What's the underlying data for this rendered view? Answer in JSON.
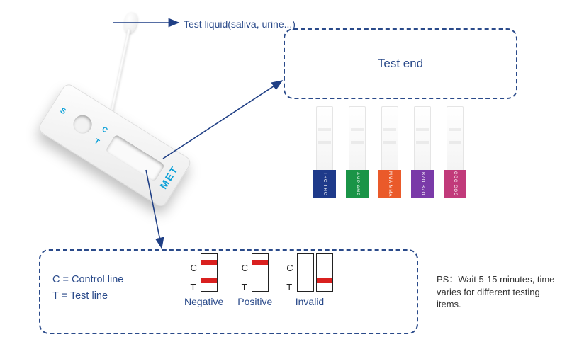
{
  "labels": {
    "testLiquid": "Test liquid(saliva, urine...)",
    "testEnd": "Test end",
    "controlLine": "C = Control line",
    "testLine": "T = Test line",
    "psNote": "PS：Wait 5-15 minutes, time varies for different testing items."
  },
  "device": {
    "name": "MET",
    "marks": {
      "s": "S",
      "c": "C",
      "t": "T"
    }
  },
  "results": [
    {
      "label": "Negative",
      "strips": [
        {
          "showC": true,
          "showT": true
        }
      ],
      "bandColor": "#d9201f"
    },
    {
      "label": "Positive",
      "strips": [
        {
          "showC": true,
          "showT": false
        }
      ],
      "bandColor": "#d9201f"
    },
    {
      "label": "Invalid",
      "strips": [
        {
          "showC": false,
          "showT": false
        },
        {
          "showC": false,
          "showT": true
        }
      ],
      "bandColor": "#d9201f"
    }
  ],
  "strips": [
    {
      "code": "THC",
      "color": "#1e3a8a"
    },
    {
      "code": "AMP",
      "color": "#1a9447"
    },
    {
      "code": "MMA",
      "color": "#ea5a2a"
    },
    {
      "code": "BZO",
      "color": "#7a3aa8"
    },
    {
      "code": "COC",
      "color": "#c13a7a"
    }
  ],
  "colors": {
    "primary": "#2a4a8a",
    "arrow": "#1f3f85"
  },
  "ctMarks": {
    "c": "C",
    "t": "T"
  }
}
